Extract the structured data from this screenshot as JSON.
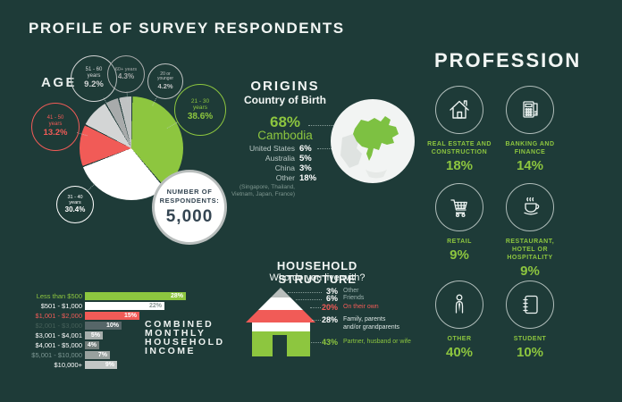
{
  "colors": {
    "background": "#1E3B38",
    "green": "#8DC63F",
    "red": "#F15B57",
    "white": "#FFFFFF",
    "muted": "#9DB3AF",
    "dark_text": "#344552"
  },
  "title": "PROFILE OF SURVEY RESPONDENTS",
  "age": {
    "label": "AGE",
    "bubbles": [
      {
        "range": "21 - 30",
        "unit": "years",
        "pct": "38.6%",
        "color": "#8DC63F"
      },
      {
        "range": "31 - 40",
        "unit": "years",
        "pct": "30.4%",
        "color": "#FFFFFF"
      },
      {
        "range": "41 - 50",
        "unit": "years",
        "pct": "13.2%",
        "color": "#F15B57"
      },
      {
        "range": "51 - 60",
        "unit": "years",
        "pct": "9.2%",
        "color": "#D3D5D5"
      },
      {
        "range": "60+ years",
        "unit": "",
        "pct": "4.3%",
        "color": "#A8ABAB"
      },
      {
        "range": "20 or",
        "unit": "younger",
        "pct": "4.2%",
        "color": "#C0C3C3"
      }
    ],
    "respondents": {
      "line1": "NUMBER OF",
      "line2": "RESPONDENTS:",
      "value": "5,000"
    }
  },
  "origins": {
    "title": "ORIGINS",
    "subtitle": "Country of Birth",
    "primary_pct": "68%",
    "primary_name": "Cambodia",
    "countries": [
      {
        "name": "United States",
        "pct": "6%"
      },
      {
        "name": "Australia",
        "pct": "5%"
      },
      {
        "name": "China",
        "pct": "3%"
      },
      {
        "name": "Other",
        "pct": "18%"
      }
    ],
    "note_line1": "(Singapore, Thailand,",
    "note_line2": "Vietnam, Japan, France)"
  },
  "profession": {
    "title": "PROFESSION",
    "items": [
      {
        "l1": "REAL ESTATE AND",
        "l2": "CONSTRUCTION",
        "l3": "",
        "pct": "18%",
        "icon": "house-icon"
      },
      {
        "l1": "BANKING AND",
        "l2": "FINANCE",
        "l3": "",
        "pct": "14%",
        "icon": "calculator-icon"
      },
      {
        "l1": "RETAIL",
        "l2": "",
        "l3": "",
        "pct": "9%",
        "icon": "cart-icon"
      },
      {
        "l1": "RESTAURANT,",
        "l2": "HOTEL OR",
        "l3": "HOSPITALITY",
        "pct": "9%",
        "icon": "coffee-cup-icon"
      },
      {
        "l1": "OTHER",
        "l2": "",
        "l3": "",
        "pct": "40%",
        "icon": "person-icon"
      },
      {
        "l1": "STUDENT",
        "l2": "",
        "l3": "",
        "pct": "10%",
        "icon": "notebook-icon"
      }
    ]
  },
  "household": {
    "title": "HOUSEHOLD STRUCTURE",
    "subtitle": "Who do you live with?",
    "items": [
      {
        "pct": "3%",
        "label": "Other",
        "label2": "",
        "band_color": "#B9BEBC",
        "pct_color": "#FFFFFF",
        "label_color": "#9DB3AF"
      },
      {
        "pct": "6%",
        "label": "Friends",
        "label2": "",
        "band_color": "#FFFFFF",
        "pct_color": "#FFFFFF",
        "label_color": "#9DB3AF"
      },
      {
        "pct": "20%",
        "label": "On their own",
        "label2": "",
        "band_color": "#F15B57",
        "pct_color": "#F15B57",
        "label_color": "#F15B57"
      },
      {
        "pct": "28%",
        "label": "Family, parents",
        "label2": "and/or grandparents",
        "band_color": "#FFFFFF",
        "pct_color": "#FFFFFF",
        "label_color": "#DCE5E3"
      },
      {
        "pct": "43%",
        "label": "Partner, husband or wife",
        "label2": "",
        "band_color": "#8DC63F",
        "pct_color": "#8DC63F",
        "label_color": "#8DC63F"
      }
    ]
  },
  "income": {
    "title_lines": [
      "COMBINED",
      "MONTHLY",
      "HOUSEHOLD",
      "INCOME"
    ],
    "rows": [
      {
        "label": "Less than $500",
        "pct": "28%",
        "value": 28,
        "bar_color": "#8DC63F",
        "label_color": "#8DC63F",
        "value_color": "#FFFFFF"
      },
      {
        "label": "$501 - $1,000",
        "pct": "22%",
        "value": 22,
        "bar_color": "#FFFFFF",
        "label_color": "#FFFFFF",
        "value_color": "#8A9795"
      },
      {
        "label": "$1,001 - $2,000",
        "pct": "15%",
        "value": 15,
        "bar_color": "#F15B57",
        "label_color": "#F15B57",
        "value_color": "#FFFFFF"
      },
      {
        "label": "$2,001 - $3,000",
        "pct": "10%",
        "value": 10,
        "bar_color": "#566668",
        "label_color": "#466059",
        "value_color": "#FFFFFF"
      },
      {
        "label": "$3,001 - $4,001",
        "pct": "5%",
        "value": 5,
        "bar_color": "#A6AEAC",
        "label_color": "#FFFFFF",
        "value_color": "#FFFFFF"
      },
      {
        "label": "$4,001 - $5,000",
        "pct": "4%",
        "value": 4,
        "bar_color": "#75807D",
        "label_color": "#FFFFFF",
        "value_color": "#FFFFFF"
      },
      {
        "label": "$5,001 - $10,000",
        "pct": "7%",
        "value": 7,
        "bar_color": "#98A19E",
        "label_color": "#7E9894",
        "value_color": "#FFFFFF"
      },
      {
        "label": "$10,000+",
        "pct": "9%",
        "value": 9,
        "bar_color": "#C2C7C5",
        "label_color": "#FFFFFF",
        "value_color": "#FFFFFF"
      }
    ]
  },
  "chart_data": [
    {
      "type": "pie",
      "title": "AGE",
      "labels": [
        "21 - 30 years",
        "31 - 40 years",
        "41 - 50 years",
        "51 - 60 years",
        "60+ years",
        "20 or younger"
      ],
      "values": [
        38.6,
        30.4,
        13.2,
        9.2,
        4.3,
        4.2
      ],
      "unit": "percent",
      "colors": [
        "#8DC63F",
        "#FFFFFF",
        "#F15B57",
        "#D3D5D5",
        "#A8ABAB",
        "#C0C3C3"
      ],
      "annotation": "NUMBER OF RESPONDENTS: 5,000"
    },
    {
      "type": "bar",
      "title": "COMBINED MONTHLY HOUSEHOLD INCOME",
      "orientation": "horizontal",
      "categories": [
        "Less than $500",
        "$501 - $1,000",
        "$1,001 - $2,000",
        "$2,001 - $3,000",
        "$3,001 - $4,001",
        "$4,001 - $5,000",
        "$5,001 - $10,000",
        "$10,000+"
      ],
      "values": [
        28,
        22,
        15,
        10,
        5,
        4,
        7,
        9
      ],
      "unit": "percent"
    },
    {
      "type": "pie",
      "title": "ORIGINS - Country of Birth",
      "labels": [
        "Cambodia",
        "United States",
        "Australia",
        "China",
        "Other (Singapore, Thailand, Vietnam, Japan, France)"
      ],
      "values": [
        68,
        6,
        5,
        3,
        18
      ],
      "unit": "percent"
    },
    {
      "type": "bar",
      "title": "PROFESSION",
      "categories": [
        "Real estate and construction",
        "Banking and finance",
        "Retail",
        "Restaurant, hotel or hospitality",
        "Other",
        "Student"
      ],
      "values": [
        18,
        14,
        9,
        9,
        40,
        10
      ],
      "unit": "percent"
    },
    {
      "type": "pie",
      "title": "HOUSEHOLD STRUCTURE - Who do you live with?",
      "labels": [
        "Other",
        "Friends",
        "On their own",
        "Family, parents and/or grandparents",
        "Partner, husband or wife"
      ],
      "values": [
        3,
        6,
        20,
        28,
        43
      ],
      "unit": "percent"
    }
  ]
}
